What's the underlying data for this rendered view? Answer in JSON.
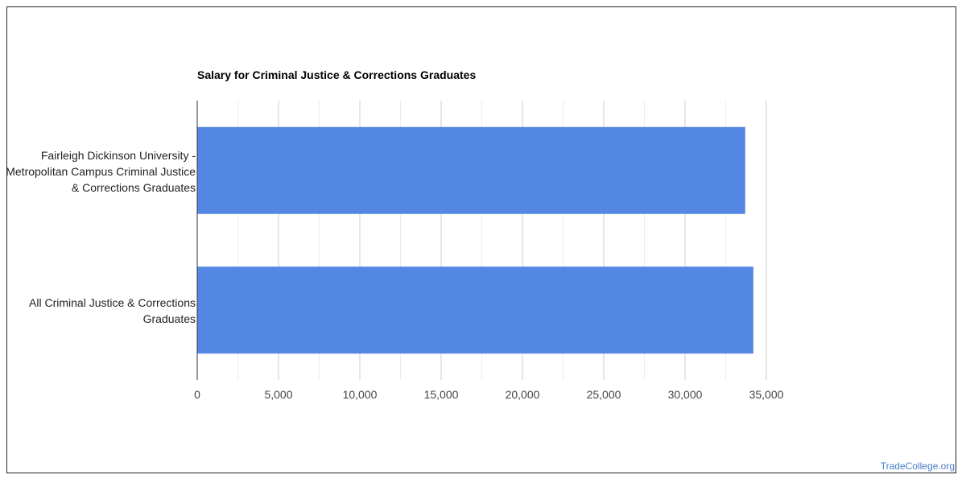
{
  "chart_data": {
    "type": "bar",
    "orientation": "horizontal",
    "title": "Salary for Criminal Justice & Corrections Graduates",
    "xlabel": "",
    "ylabel": "",
    "categories": [
      "Fairleigh Dickinson University - Metropolitan Campus Criminal Justice & Corrections Graduates",
      "All Criminal Justice & Corrections Graduates"
    ],
    "values": [
      33700,
      34200
    ],
    "xlim": [
      0,
      35000
    ],
    "ticks": [
      "0",
      "5,000",
      "10,000",
      "15,000",
      "20,000",
      "25,000",
      "30,000",
      "35,000"
    ],
    "tick_values": [
      0,
      5000,
      10000,
      15000,
      20000,
      25000,
      30000,
      35000
    ],
    "bar_color": "#5387e3",
    "grid": true,
    "legend": "none"
  },
  "watermark": "TradeCollege.org"
}
